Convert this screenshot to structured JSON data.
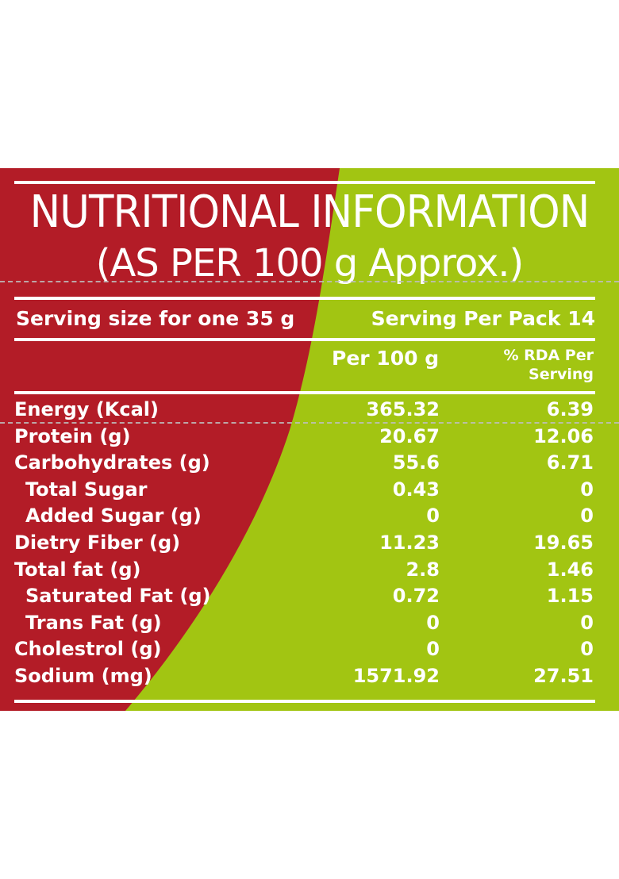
{
  "colors": {
    "red_panel": "#b31c27",
    "green_panel": "#a2c512",
    "text": "#ffffff"
  },
  "title": {
    "line1": "NUTRITIONAL INFORMATION",
    "line2": "(AS PER 100 g Approx.)"
  },
  "serving": {
    "size": "Serving size for one 35 g",
    "per_pack": "Serving Per Pack 14"
  },
  "columns": {
    "per_100g": "Per 100 g",
    "rda_line1": "% RDA Per",
    "rda_line2": "Serving"
  },
  "rows": [
    {
      "label": "Energy (Kcal)",
      "per_100g": "365.32",
      "rda": "6.39",
      "indent": false
    },
    {
      "label": "Protein (g)",
      "per_100g": "20.67",
      "rda": "12.06",
      "indent": false
    },
    {
      "label": "Carbohydrates (g)",
      "per_100g": "55.6",
      "rda": "6.71",
      "indent": false
    },
    {
      "label": "Total Sugar",
      "per_100g": "0.43",
      "rda": "0",
      "indent": true
    },
    {
      "label": "Added Sugar (g)",
      "per_100g": "0",
      "rda": "0",
      "indent": true
    },
    {
      "label": "Dietry Fiber (g)",
      "per_100g": "11.23",
      "rda": "19.65",
      "indent": false
    },
    {
      "label": "Total fat (g)",
      "per_100g": "2.8",
      "rda": "1.46",
      "indent": false
    },
    {
      "label": "Saturated Fat (g)",
      "per_100g": "0.72",
      "rda": "1.15",
      "indent": true
    },
    {
      "label": "Trans Fat (g)",
      "per_100g": "0",
      "rda": "0",
      "indent": true
    },
    {
      "label": "Cholestrol (g)",
      "per_100g": "0",
      "rda": "0",
      "indent": false
    },
    {
      "label": "Sodium (mg)",
      "per_100g": "1571.92",
      "rda": "27.51",
      "indent": false
    }
  ]
}
